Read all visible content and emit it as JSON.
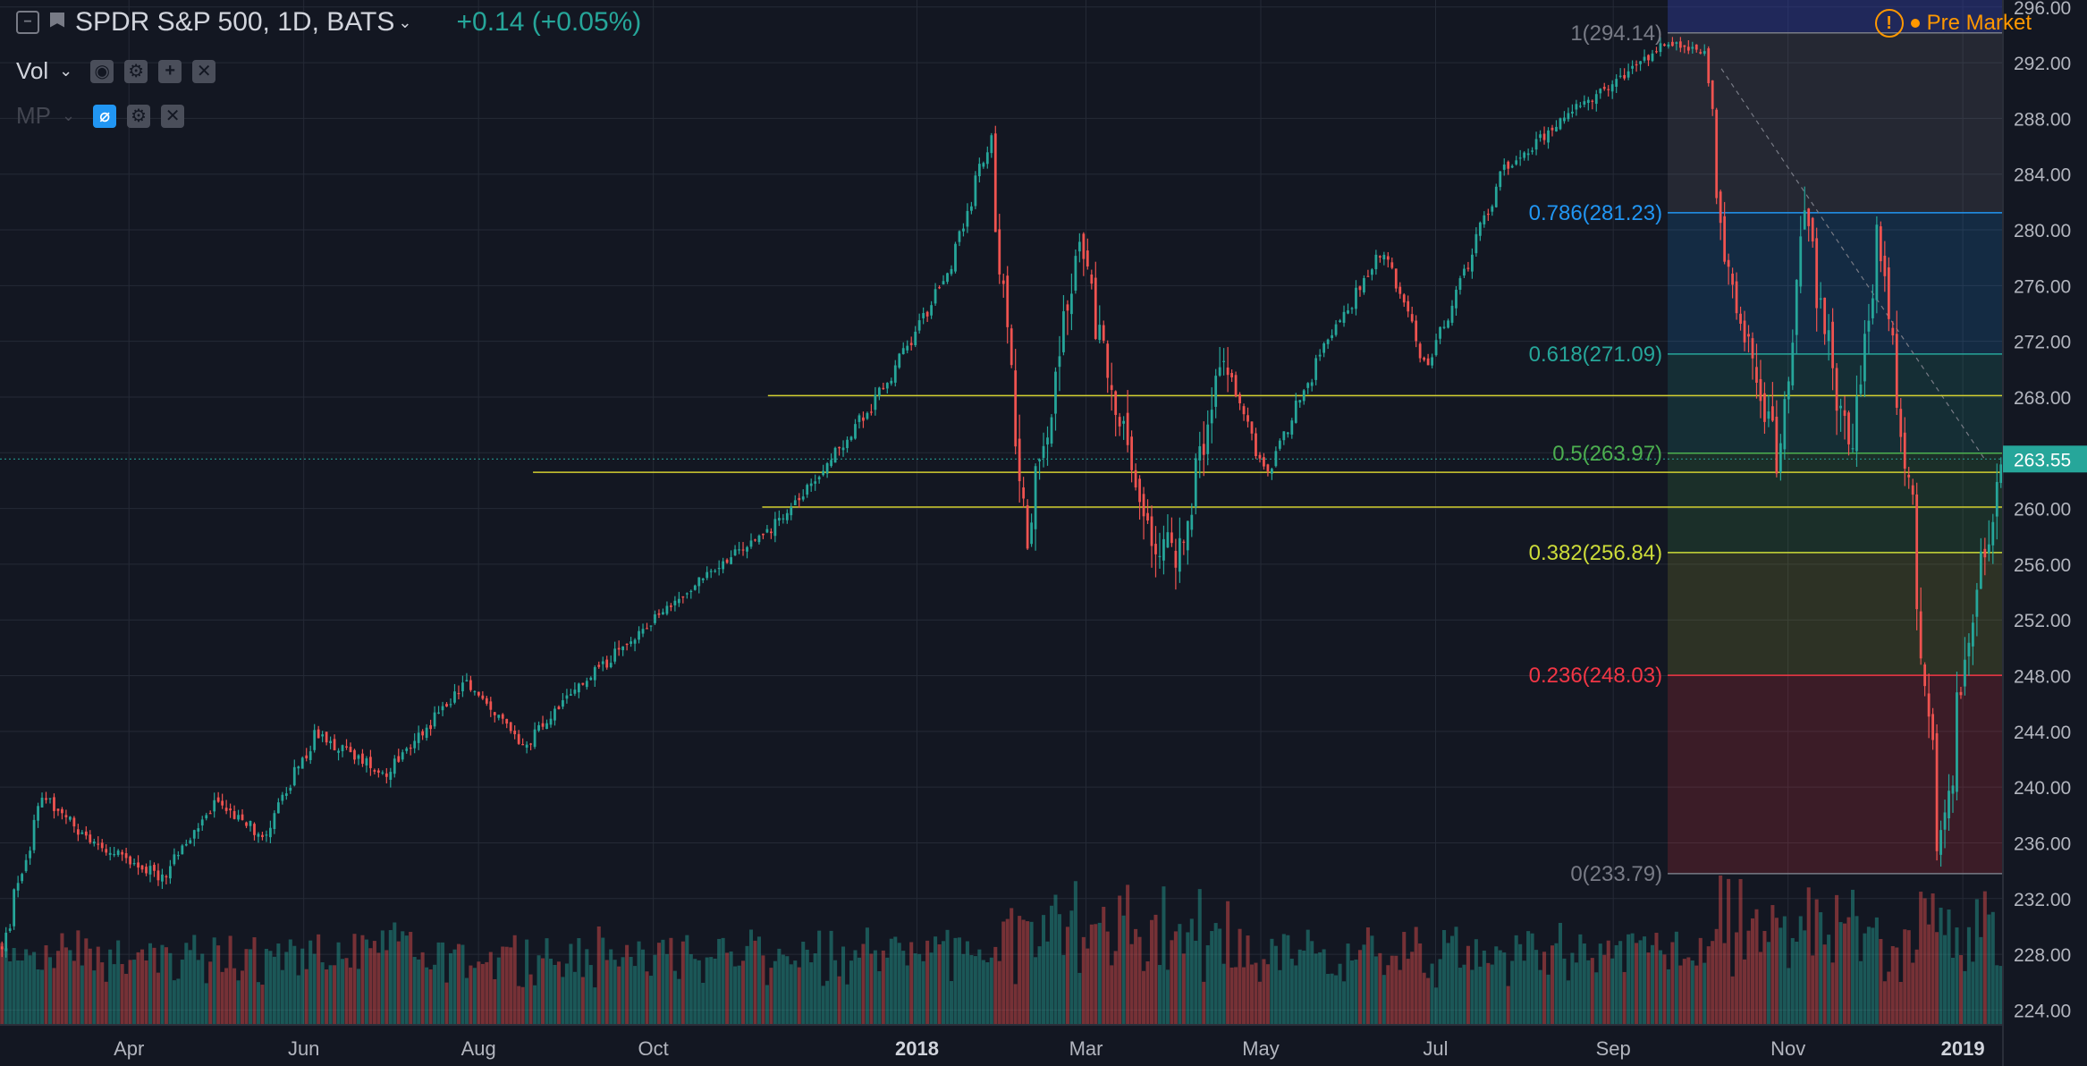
{
  "header": {
    "symbol": "SPDR S&P 500, 1D, BATS",
    "change": "+0.14 (+0.05%)",
    "vol_label": "Vol",
    "mp_label": "MP",
    "pre_market": "Pre Market"
  },
  "colors": {
    "up": "#26a69a",
    "down": "#ef5350",
    "background": "#131722",
    "grid": "#252a36",
    "axis_text": "#b2b5be",
    "hline": "#d4d030"
  },
  "icons": [
    "collapse-icon",
    "flag-icon",
    "chevron-down-icon",
    "eye-icon",
    "gear-icon",
    "plus-icon",
    "close-icon",
    "eye-off-icon",
    "alert-icon"
  ],
  "chart_data": {
    "type": "candlestick",
    "x_axis": {
      "ticks": [
        "Apr",
        "Jun",
        "Aug",
        "Oct",
        "2018",
        "Mar",
        "May",
        "Jul",
        "Sep",
        "Nov",
        "2019"
      ]
    },
    "y_axis": {
      "ylim": [
        223.0,
        296.5
      ],
      "ticks": [
        "296.00",
        "292.00",
        "288.00",
        "284.00",
        "280.00",
        "276.00",
        "272.00",
        "268.00",
        "264.00",
        "260.00",
        "256.00",
        "252.00",
        "248.00",
        "244.00",
        "240.00",
        "236.00",
        "232.00",
        "228.00",
        "224.00"
      ]
    },
    "last_price": "263.55",
    "x_range": [
      "2017-02-15",
      "2019-01-15"
    ],
    "price_path": [
      [
        "2017-02-15",
        228.5
      ],
      [
        "2017-03-01",
        239.5
      ],
      [
        "2017-03-15",
        236.5
      ],
      [
        "2017-04-12",
        233.5
      ],
      [
        "2017-05-01",
        239.0
      ],
      [
        "2017-05-17",
        236.5
      ],
      [
        "2017-06-05",
        243.8
      ],
      [
        "2017-06-29",
        241.0
      ],
      [
        "2017-07-27",
        247.5
      ],
      [
        "2017-08-17",
        243.0
      ],
      [
        "2017-09-01",
        246.5
      ],
      [
        "2017-09-20",
        250.0
      ],
      [
        "2017-10-15",
        254.5
      ],
      [
        "2017-11-10",
        258.5
      ],
      [
        "2017-11-28",
        262.5
      ],
      [
        "2017-12-18",
        268.0
      ],
      [
        "2018-01-12",
        277.0
      ],
      [
        "2018-01-26",
        286.5
      ],
      [
        "2018-02-08",
        258.0
      ],
      [
        "2018-02-26",
        279.0
      ],
      [
        "2018-03-22",
        258.5
      ],
      [
        "2018-04-02",
        256.5
      ],
      [
        "2018-04-18",
        270.5
      ],
      [
        "2018-05-03",
        262.5
      ],
      [
        "2018-05-25",
        272.5
      ],
      [
        "2018-06-13",
        278.5
      ],
      [
        "2018-06-28",
        270.0
      ],
      [
        "2018-07-25",
        284.5
      ],
      [
        "2018-08-28",
        290.0
      ],
      [
        "2018-09-20",
        293.5
      ],
      [
        "2018-10-03",
        292.5
      ],
      [
        "2018-10-11",
        276.5
      ],
      [
        "2018-10-29",
        263.5
      ],
      [
        "2018-11-07",
        280.5
      ],
      [
        "2018-11-23",
        263.5
      ],
      [
        "2018-12-03",
        279.5
      ],
      [
        "2018-12-14",
        260.5
      ],
      [
        "2018-12-24",
        234.5
      ],
      [
        "2019-01-04",
        252.5
      ],
      [
        "2019-01-11",
        258.5
      ],
      [
        "2019-01-15",
        263.55
      ]
    ],
    "volume_scale": [
      224.0,
      242.0
    ],
    "fibonacci": {
      "x_start": "2018-09-20",
      "x_end": "2019-01-15",
      "levels": [
        {
          "label": "1(294.14)",
          "price": 294.14,
          "color": "#787b86"
        },
        {
          "label": "0.786(281.23)",
          "price": 281.23,
          "color": "#2196f3"
        },
        {
          "label": "0.618(271.09)",
          "price": 271.09,
          "color": "#26a69a"
        },
        {
          "label": "0.5(263.97)",
          "price": 263.97,
          "color": "#4caf50"
        },
        {
          "label": "0.382(256.84)",
          "price": 256.84,
          "color": "#cddc39"
        },
        {
          "label": "0.236(248.03)",
          "price": 248.03,
          "color": "#f23645"
        },
        {
          "label": "0(233.79)",
          "price": 233.79,
          "color": "#787b86"
        }
      ]
    },
    "horizontal_lines": [
      {
        "price": 268.1,
        "from": "2017-11-10"
      },
      {
        "price": 262.6,
        "from": "2017-08-20"
      },
      {
        "price": 260.1,
        "from": "2017-11-08"
      }
    ],
    "last_price_line": 263.55
  }
}
